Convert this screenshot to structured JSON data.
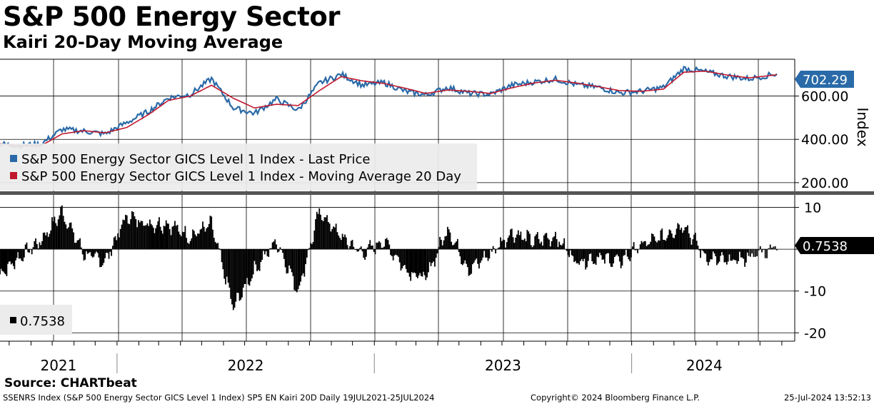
{
  "header": {
    "title": "S&P 500 Energy Sector",
    "subtitle": "Kairi 20-Day Moving Average"
  },
  "footer": {
    "source": "Source: CHARTbeat",
    "description": "SSENRS Index (S&P 500 Energy Sector GICS Level 1 Index) SP5 EN Kairi 20D  Daily 19JUL2021-25JUL2024",
    "copyright": "Copyright© 2024 Bloomberg Finance L.P.",
    "timestamp": "25-Jul-2024 13:52:13"
  },
  "colors": {
    "price": "#2a6aa8",
    "moving_average": "#c0182d",
    "kairi_bars": "#000000",
    "last_price_badge": "#2a6aa8",
    "kairi_badge": "#000000",
    "grid": "#000000",
    "separator": "#555555"
  },
  "chart_data": [
    {
      "type": "line",
      "panel": "upper",
      "ylabel": "Index",
      "ylim": [
        160,
        770
      ],
      "yticks": [
        200,
        400,
        600
      ],
      "ytick_labels": [
        "200.00",
        "400.00",
        "600.00"
      ],
      "last_value_label": "702.29",
      "legend": [
        "S&P 500 Energy Sector GICS Level 1 Index - Last Price",
        "S&P 500 Energy Sector GICS Level 1 Index - Moving Average 20 Day"
      ],
      "x_range": [
        "2021-07-19",
        "2024-07-25"
      ],
      "x": [
        "2021-07",
        "2021-08",
        "2021-09",
        "2021-10",
        "2021-11",
        "2021-12",
        "2022-01",
        "2022-02",
        "2022-03",
        "2022-04",
        "2022-05",
        "2022-06",
        "2022-07",
        "2022-08",
        "2022-09",
        "2022-10",
        "2022-11",
        "2022-12",
        "2023-01",
        "2023-02",
        "2023-03",
        "2023-04",
        "2023-05",
        "2023-06",
        "2023-07",
        "2023-08",
        "2023-09",
        "2023-10",
        "2023-11",
        "2023-12",
        "2024-01",
        "2024-02",
        "2024-03",
        "2024-04",
        "2024-05",
        "2024-06",
        "2024-07"
      ],
      "series": [
        {
          "name": "Last Price",
          "values": [
            378,
            372,
            378,
            446,
            438,
            425,
            478,
            530,
            592,
            608,
            680,
            545,
            520,
            585,
            535,
            660,
            700,
            650,
            662,
            620,
            605,
            640,
            612,
            608,
            650,
            665,
            678,
            652,
            640,
            615,
            622,
            640,
            728,
            712,
            692,
            680,
            702.29
          ]
        },
        {
          "name": "Moving Average 20 Day",
          "values": [
            380,
            370,
            370,
            425,
            440,
            430,
            455,
            515,
            580,
            600,
            650,
            590,
            545,
            562,
            556,
            625,
            690,
            670,
            658,
            635,
            612,
            628,
            622,
            612,
            638,
            660,
            673,
            660,
            643,
            625,
            622,
            632,
            710,
            715,
            697,
            684,
            698
          ]
        }
      ]
    },
    {
      "type": "bar",
      "panel": "lower",
      "ylim": [
        -22,
        13
      ],
      "yticks": [
        10,
        0,
        -10,
        -20
      ],
      "ytick_labels": [
        "10",
        "",
        "-10",
        "-20"
      ],
      "last_value_label": "0.7538",
      "legend": [
        "0.7538"
      ],
      "x": [
        "2021-07",
        "2021-08",
        "2021-09",
        "2021-10",
        "2021-11",
        "2021-12",
        "2022-01",
        "2022-02",
        "2022-03",
        "2022-04",
        "2022-05",
        "2022-06",
        "2022-07",
        "2022-08",
        "2022-09",
        "2022-10",
        "2022-11",
        "2022-12",
        "2023-01",
        "2023-02",
        "2023-03",
        "2023-04",
        "2023-05",
        "2023-06",
        "2023-07",
        "2023-08",
        "2023-09",
        "2023-10",
        "2023-11",
        "2023-12",
        "2024-01",
        "2024-02",
        "2024-03",
        "2024-04",
        "2024-05",
        "2024-06",
        "2024-07"
      ],
      "values": [
        -6,
        -2,
        2,
        9,
        -1,
        -3,
        8,
        6,
        6,
        3,
        6,
        -14,
        -5,
        2,
        -10,
        9,
        3,
        -1,
        2,
        -5,
        -7,
        5,
        -5,
        -1,
        4,
        2,
        3,
        -3,
        -2,
        -3,
        1,
        3,
        6,
        -2,
        -3,
        -2,
        0.7538
      ]
    }
  ],
  "x_axis": {
    "years": [
      "2021",
      "2022",
      "2023",
      "2024"
    ]
  }
}
